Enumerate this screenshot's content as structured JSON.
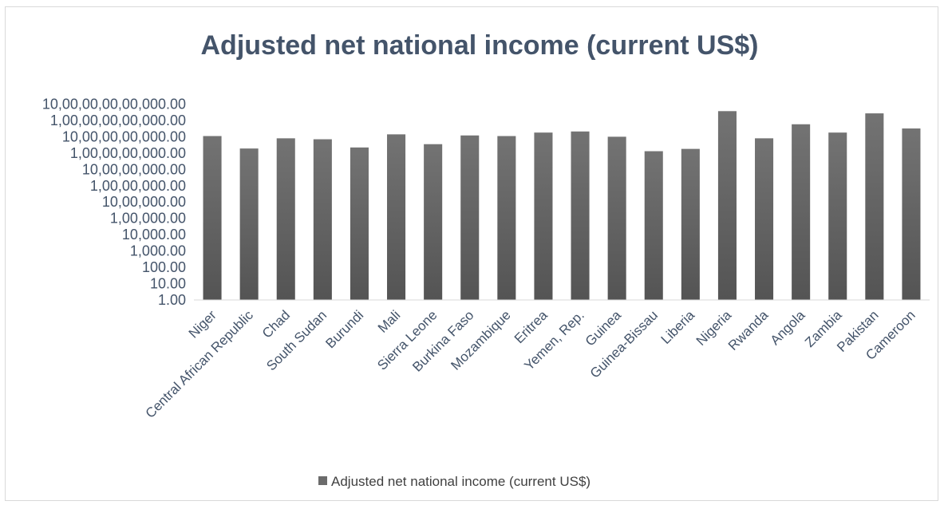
{
  "chart_data": {
    "type": "bar",
    "title": "Adjusted net national income (current US$)",
    "xlabel": "",
    "ylabel": "",
    "scale": "log",
    "ylim": [
      1,
      10000000000000
    ],
    "grid": false,
    "legend_position": "bottom",
    "y_ticks": [
      {
        "value": 1,
        "label": "1.00"
      },
      {
        "value": 10,
        "label": "10.00"
      },
      {
        "value": 100,
        "label": "100.00"
      },
      {
        "value": 1000,
        "label": "1,000.00"
      },
      {
        "value": 10000,
        "label": "10,000.00"
      },
      {
        "value": 100000,
        "label": "1,00,000.00"
      },
      {
        "value": 1000000,
        "label": "10,00,000.00"
      },
      {
        "value": 10000000,
        "label": "1,00,00,000.00"
      },
      {
        "value": 100000000,
        "label": "10,00,00,000.00"
      },
      {
        "value": 1000000000,
        "label": "1,00,00,00,000.00"
      },
      {
        "value": 10000000000,
        "label": "10,00,00,00,000.00"
      },
      {
        "value": 100000000000,
        "label": "1,00,00,00,00,000.00"
      },
      {
        "value": 1000000000000,
        "label": "10,00,00,00,00,000.00"
      }
    ],
    "categories": [
      "Niger",
      "Central African Republic",
      "Chad",
      "South Sudan",
      "Burundi",
      "Mali",
      "Sierra Leone",
      "Burkina Faso",
      "Mozambique",
      "Eritrea",
      "Yemen, Rep.",
      "Guinea",
      "Guinea-Bissau",
      "Liberia",
      "Nigeria",
      "Rwanda",
      "Angola",
      "Zambia",
      "Pakistan",
      "Cameroon"
    ],
    "series": [
      {
        "name": "Adjusted net national income (current US$)",
        "color": "#6b6b6b",
        "values": [
          11000000000,
          1900000000,
          8000000000,
          7000000000,
          2200000000,
          14000000000,
          3500000000,
          12000000000,
          11000000000,
          18000000000,
          21000000000,
          10000000000,
          1300000000,
          1800000000,
          370000000000,
          8000000000,
          58000000000,
          18000000000,
          270000000000,
          32000000000
        ]
      }
    ]
  }
}
